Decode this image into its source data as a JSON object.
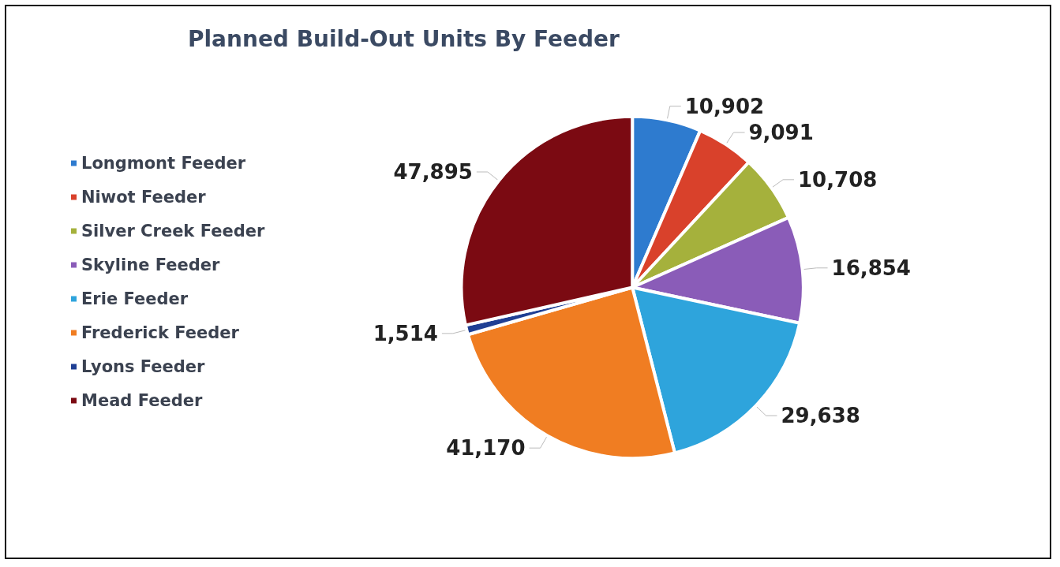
{
  "chart_data": {
    "type": "pie",
    "title": "Planned Build-Out Units By Feeder",
    "categories": [
      "Longmont Feeder",
      "Niwot Feeder",
      "Silver Creek Feeder",
      "Skyline Feeder",
      "Erie Feeder",
      "Frederick Feeder",
      "Lyons Feeder",
      "Mead Feeder"
    ],
    "values": [
      10902,
      9091,
      10708,
      16854,
      29638,
      41170,
      1514,
      47895
    ],
    "value_labels": [
      "10,902",
      "9,091",
      "10,708",
      "16,854",
      "29,638",
      "41,170",
      "1,514",
      "47,895"
    ],
    "colors": [
      "#2e7bcf",
      "#d9412b",
      "#a5b13c",
      "#8a5cb8",
      "#2ea4dc",
      "#f07d22",
      "#1f3f94",
      "#7b0a12"
    ],
    "legend": "left"
  }
}
